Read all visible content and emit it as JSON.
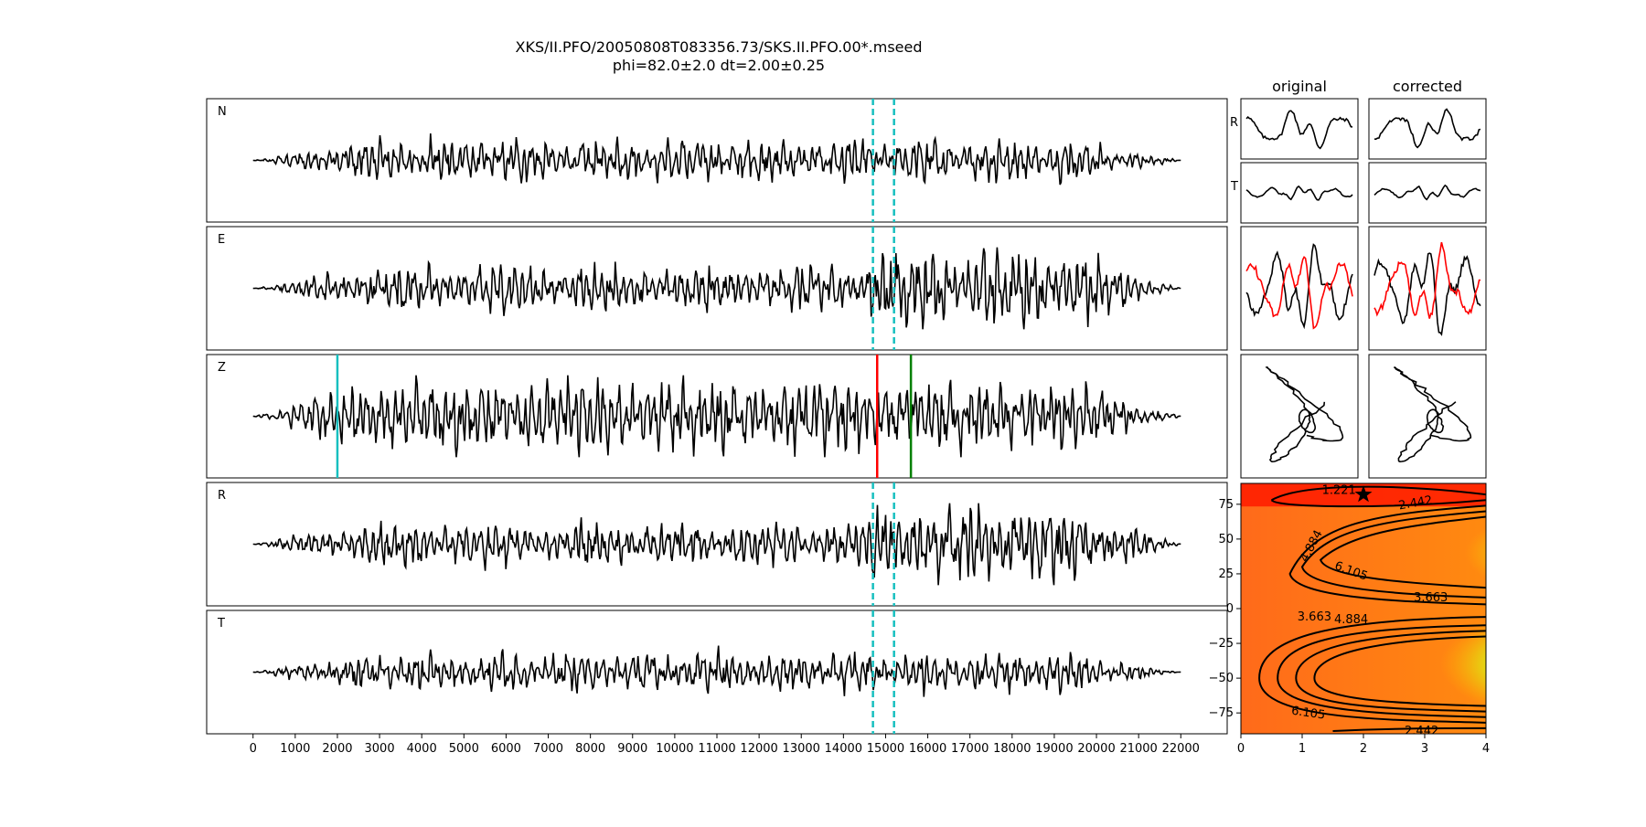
{
  "chart_data": {
    "type": "line",
    "title": "XKS/II.PFO/20050808T083356.73/SKS.II.PFO.00*.mseed",
    "subtitle": "phi=82.0±2.0 dt=2.00±0.25",
    "xlim": [
      -1100,
      23100
    ],
    "x_ticks": [
      0,
      1000,
      2000,
      3000,
      4000,
      5000,
      6000,
      7000,
      8000,
      9000,
      10000,
      11000,
      12000,
      13000,
      14000,
      15000,
      16000,
      17000,
      18000,
      19000,
      20000,
      21000,
      22000
    ],
    "trace_x_range": [
      0,
      22000
    ],
    "traces": [
      {
        "name": "N"
      },
      {
        "name": "E"
      },
      {
        "name": "Z"
      },
      {
        "name": "R"
      },
      {
        "name": "T"
      }
    ],
    "window_markers": {
      "dashed_x": [
        14700,
        15200
      ],
      "dashed_color": "#17bfbf",
      "dashed_panels": [
        "N",
        "E",
        "R",
        "T"
      ],
      "z_markers": [
        {
          "x": 2000,
          "color": "#17bfbf"
        },
        {
          "x": 14800,
          "color": "#ff0000"
        },
        {
          "x": 15600,
          "color": "#008000"
        }
      ]
    },
    "small_panels": {
      "column_titles": [
        "original",
        "corrected"
      ],
      "row_labels": [
        "R",
        "T"
      ]
    },
    "contour": {
      "xlim": [
        0,
        4
      ],
      "ylim": [
        -90,
        90
      ],
      "x_ticks": [
        0,
        1,
        2,
        3,
        4
      ],
      "y_ticks": [
        75,
        50,
        25,
        0,
        -25,
        -50,
        -75
      ],
      "levels": [
        "1.221",
        "2.442",
        "3.663",
        "4.884",
        "6.105"
      ],
      "best": {
        "dt": 2.0,
        "phi": 82.0
      }
    }
  }
}
